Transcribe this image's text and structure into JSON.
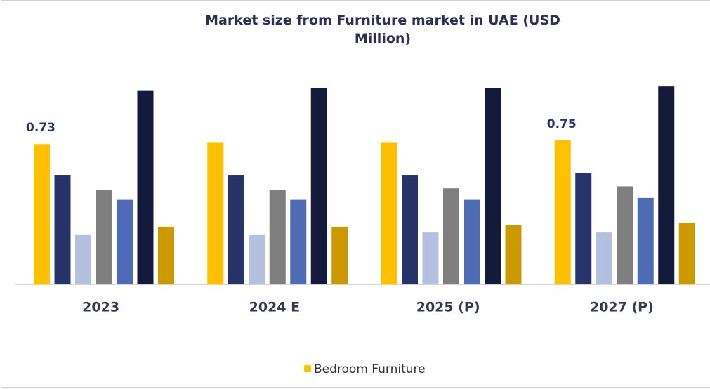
{
  "chart_data": {
    "type": "bar",
    "title": "Market size from Furniture market in UAE (USD Million)",
    "categories": [
      "2023",
      "2024 E",
      "2025 (P)",
      "2027 (P)"
    ],
    "ylim": [
      0,
      1.1
    ],
    "legend": "bottom",
    "series": [
      {
        "name": "Bedroom Furniture",
        "color": "#ffc000",
        "values": [
          0.73,
          0.74,
          0.74,
          0.75
        ],
        "value_labels": [
          "0.73",
          null,
          null,
          "0.75"
        ]
      },
      {
        "color": "#263469",
        "values": [
          0.57,
          0.57,
          0.57,
          0.58
        ]
      },
      {
        "color": "#b4c0e0",
        "values": [
          0.26,
          0.26,
          0.27,
          0.27
        ]
      },
      {
        "color": "#7f7f7f",
        "values": [
          0.49,
          0.49,
          0.5,
          0.51
        ]
      },
      {
        "color": "#4e6bb5",
        "values": [
          0.44,
          0.44,
          0.44,
          0.45
        ]
      },
      {
        "color": "#141a3c",
        "values": [
          1.01,
          1.02,
          1.02,
          1.03
        ]
      },
      {
        "color": "#cc9900",
        "values": [
          0.3,
          0.3,
          0.31,
          0.32
        ]
      }
    ]
  }
}
